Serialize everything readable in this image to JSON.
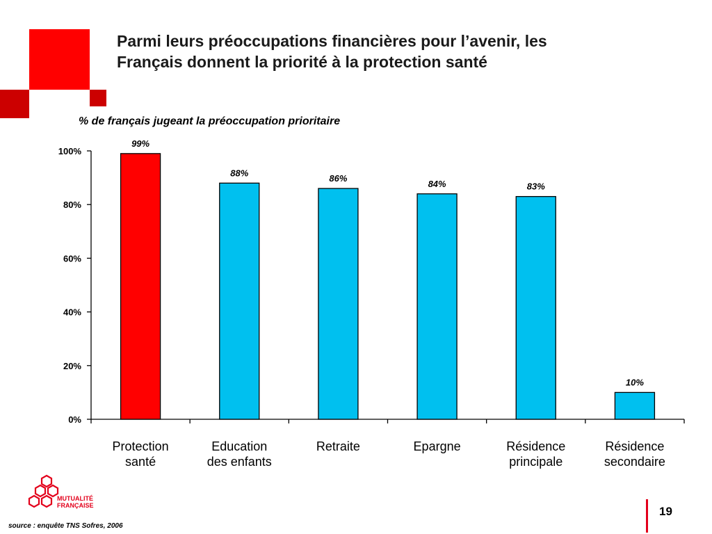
{
  "slide": {
    "title_lines": [
      "Parmi leurs préoccupations financières pour l’avenir, les",
      "Français donnent la priorité à la protection santé"
    ],
    "subtitle": "% de français jugeant la préoccupation prioritaire",
    "source": "source : enquête TNS Sofres, 2006",
    "page_number": "19",
    "logo": {
      "icon": "mutualite-francaise-logo",
      "text_lines": [
        "MUTUALITÉ",
        "FRANÇAISE"
      ]
    },
    "colors": {
      "accent_red": "#e3001b",
      "dark_red": "#c0000f",
      "highlight_bar": "#ff0000",
      "bar": "#00c0ef"
    }
  },
  "chart_data": {
    "type": "bar",
    "categories": [
      [
        "Protection",
        "santé"
      ],
      [
        "Education",
        "des enfants"
      ],
      [
        "Retraite"
      ],
      [
        "Epargne"
      ],
      [
        "Résidence",
        "principale"
      ],
      [
        "Résidence",
        "secondaire"
      ]
    ],
    "values": [
      99,
      88,
      86,
      84,
      83,
      10
    ],
    "value_labels": [
      "99%",
      "88%",
      "86%",
      "84%",
      "83%",
      "10%"
    ],
    "highlighted_index": 0,
    "ylim": [
      0,
      100
    ],
    "yticks": [
      0,
      20,
      40,
      60,
      80,
      100
    ],
    "ytick_labels": [
      "0%",
      "20%",
      "40%",
      "60%",
      "80%",
      "100%"
    ],
    "grid": false,
    "legend": "none"
  }
}
